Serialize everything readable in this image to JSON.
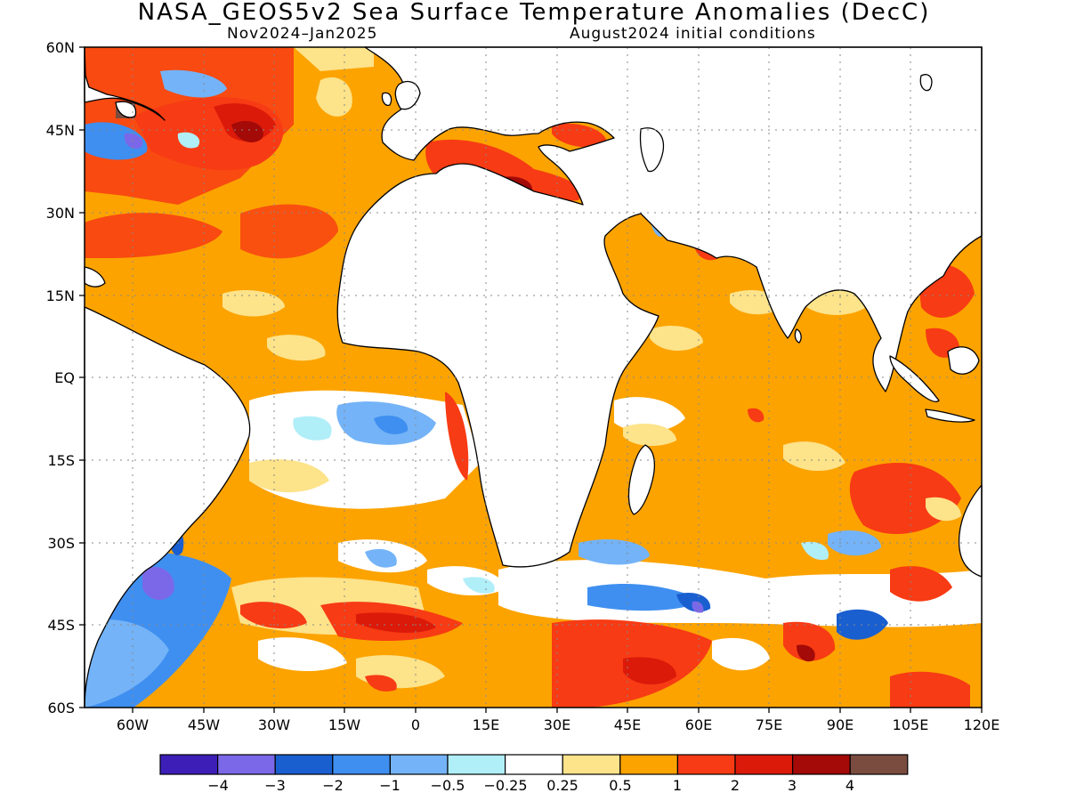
{
  "title": "NASA_GEOS5v2 Sea Surface Temperature Anomalies (DecC)",
  "subtitle_left": "Nov2024–Jan2025",
  "subtitle_right": "August2024 initial conditions",
  "lat_labels": [
    "60N",
    "45N",
    "30N",
    "15N",
    "EQ",
    "15S",
    "30S",
    "45S",
    "60S"
  ],
  "lon_labels": [
    "60W",
    "45W",
    "30W",
    "15W",
    "0",
    "15E",
    "30E",
    "45E",
    "60E",
    "75E",
    "90E",
    "105E",
    "120E"
  ],
  "colorbar": {
    "colors": [
      "#3d1fb8",
      "#7b68e8",
      "#1a5fd0",
      "#3f8ff0",
      "#74b3f7",
      "#b0eef8",
      "#ffffff",
      "#fde38a",
      "#fca300",
      "#f73b14",
      "#db1a0a",
      "#a30a08",
      "#7a4c40"
    ],
    "labels": [
      "−4",
      "−3",
      "−2",
      "−1",
      "−0.5",
      "−0.25",
      "0.25",
      "0.5",
      "1",
      "2",
      "3",
      "4"
    ]
  }
}
